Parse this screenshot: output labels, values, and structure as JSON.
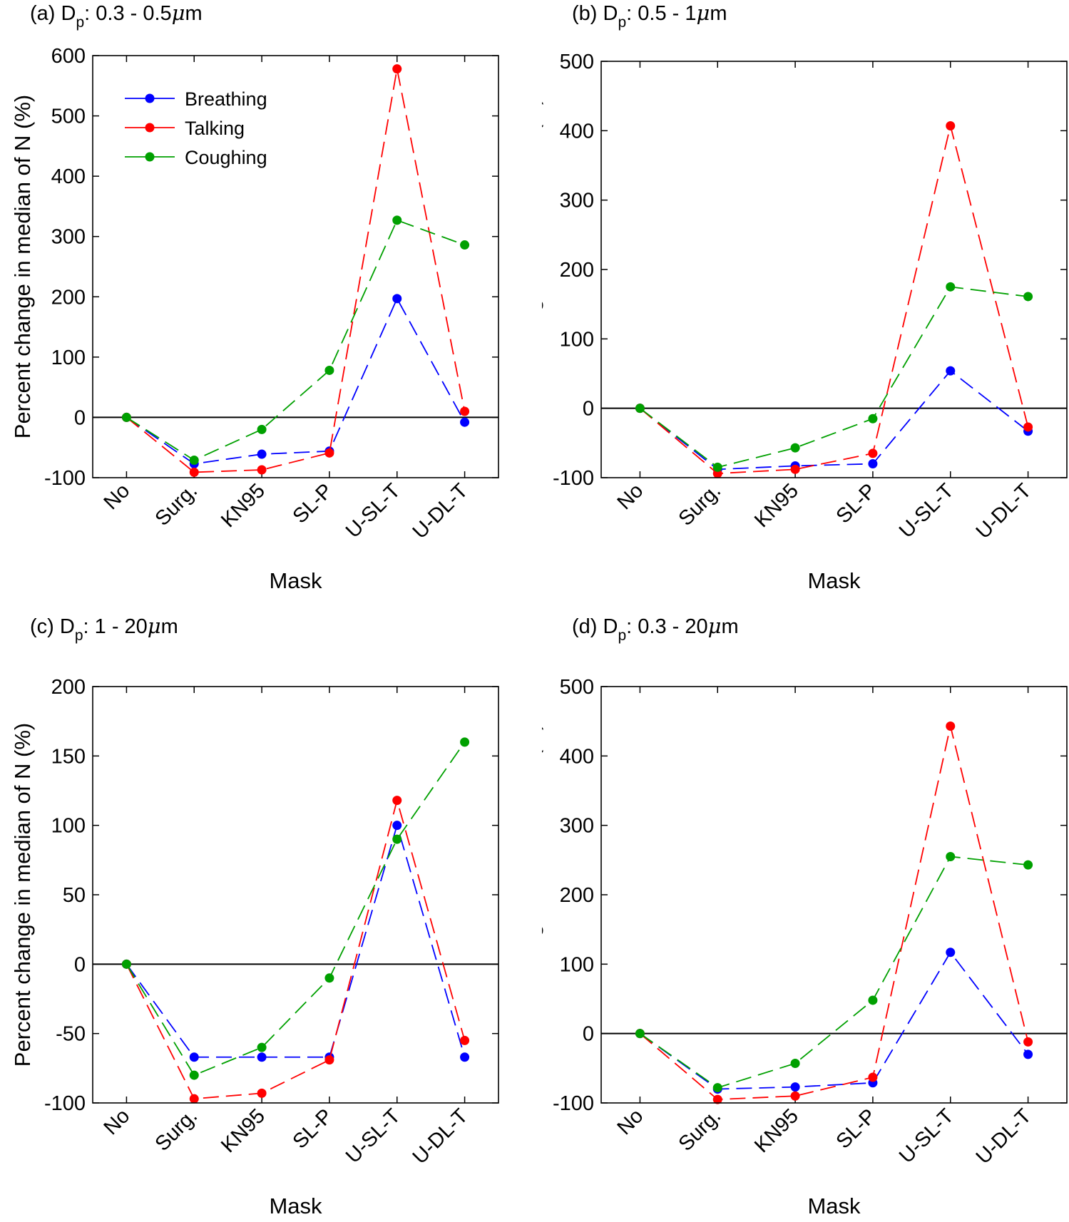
{
  "colors": {
    "Breathing": "#0000ff",
    "Talking": "#ff0000",
    "Coughing": "#00a000"
  },
  "chart_data": [
    {
      "type": "line",
      "title_prefix": "(a) D",
      "title_sub": "p",
      "title_suffix": ": 0.3 - 0.5",
      "title_mu": "μ",
      "title_unit": "m",
      "categories": [
        "No",
        "Surg.",
        "KN95",
        "SL-P",
        "U-SL-T",
        "U-DL-T"
      ],
      "xlabel": "Mask",
      "ylabel": "Percent change in median of N (%)",
      "ylim": [
        -100,
        600
      ],
      "yticks": [
        -100,
        0,
        100,
        200,
        300,
        400,
        500,
        600
      ],
      "ytick_labels": [
        "-100",
        "0",
        "100",
        "200",
        "300",
        "400",
        "500",
        "600"
      ],
      "legend": "top-left",
      "series": [
        {
          "name": "Breathing",
          "values": [
            0,
            -77,
            -61,
            -56,
            197,
            -8
          ]
        },
        {
          "name": "Talking",
          "values": [
            0,
            -91,
            -87,
            -59,
            578,
            10
          ]
        },
        {
          "name": "Coughing",
          "values": [
            0,
            -71,
            -20,
            78,
            327,
            286
          ]
        }
      ]
    },
    {
      "type": "line",
      "title_prefix": "(b) D",
      "title_sub": "p",
      "title_suffix": ": 0.5 - 1",
      "title_mu": "μ",
      "title_unit": "m",
      "categories": [
        "No",
        "Surg.",
        "KN95",
        "SL-P",
        "U-SL-T",
        "U-DL-T"
      ],
      "xlabel": "Mask",
      "ylabel": "Percent change in median of N (%)",
      "ylim": [
        -100,
        500
      ],
      "yticks": [
        -100,
        0,
        100,
        200,
        300,
        400,
        500
      ],
      "ytick_labels": [
        "-100",
        "0",
        "100",
        "200",
        "300",
        "400",
        "500"
      ],
      "series": [
        {
          "name": "Breathing",
          "values": [
            0,
            -88,
            -83,
            -80,
            54,
            -33
          ]
        },
        {
          "name": "Talking",
          "values": [
            0,
            -94,
            -88,
            -65,
            407,
            -27
          ]
        },
        {
          "name": "Coughing",
          "values": [
            0,
            -85,
            -57,
            -15,
            175,
            161
          ]
        }
      ]
    },
    {
      "type": "line",
      "title_prefix": "(c) D",
      "title_sub": "p",
      "title_suffix": ": 1 - 20",
      "title_mu": "μ",
      "title_unit": "m",
      "categories": [
        "No",
        "Surg.",
        "KN95",
        "SL-P",
        "U-SL-T",
        "U-DL-T"
      ],
      "xlabel": "Mask",
      "ylabel": "Percent change in median of N (%)",
      "ylim": [
        -100,
        200
      ],
      "yticks": [
        -100,
        -50,
        0,
        50,
        100,
        150,
        200
      ],
      "ytick_labels": [
        "-100",
        "-50",
        "0",
        "50",
        "100",
        "150",
        "200"
      ],
      "series": [
        {
          "name": "Breathing",
          "values": [
            0,
            -67,
            -67,
            -67,
            100,
            -67
          ]
        },
        {
          "name": "Talking",
          "values": [
            0,
            -97,
            -93,
            -69,
            118,
            -55
          ]
        },
        {
          "name": "Coughing",
          "values": [
            0,
            -80,
            -60,
            -10,
            90,
            160
          ]
        }
      ]
    },
    {
      "type": "line",
      "title_prefix": "(d) D",
      "title_sub": "p",
      "title_suffix": ": 0.3 - 20",
      "title_mu": "μ",
      "title_unit": "m",
      "categories": [
        "No",
        "Surg.",
        "KN95",
        "SL-P",
        "U-SL-T",
        "U-DL-T"
      ],
      "xlabel": "Mask",
      "ylabel": "Percent change in median of N (%)",
      "ylim": [
        -100,
        500
      ],
      "yticks": [
        -100,
        0,
        100,
        200,
        300,
        400,
        500
      ],
      "ytick_labels": [
        "-100",
        "0",
        "100",
        "200",
        "300",
        "400",
        "500"
      ],
      "series": [
        {
          "name": "Breathing",
          "values": [
            0,
            -80,
            -77,
            -71,
            117,
            -30
          ]
        },
        {
          "name": "Talking",
          "values": [
            0,
            -95,
            -90,
            -63,
            443,
            -12
          ]
        },
        {
          "name": "Coughing",
          "values": [
            0,
            -78,
            -43,
            48,
            255,
            243
          ]
        }
      ]
    }
  ]
}
